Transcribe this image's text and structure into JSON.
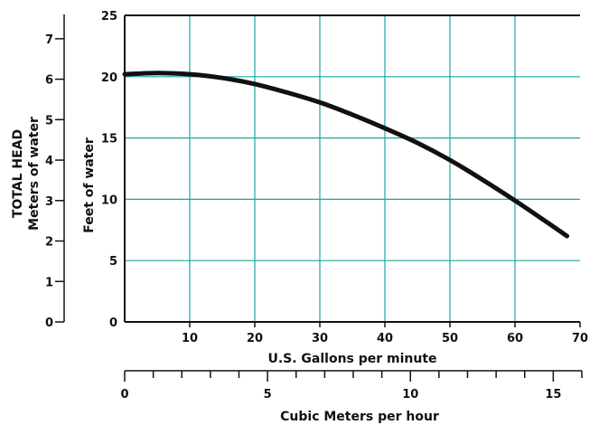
{
  "chart_data": {
    "type": "line",
    "title": "",
    "xlabel": "U.S. Gallons per minute",
    "xlabel_secondary": "Cubic Meters per hour",
    "ylabel": "Feet of water",
    "ylabel_secondary_line1": "TOTAL HEAD",
    "ylabel_secondary_line2": "Meters of  water",
    "xlim": [
      0,
      70
    ],
    "ylim": [
      0,
      25
    ],
    "xlim_secondary": [
      0,
      16
    ],
    "ylim_secondary": [
      0,
      7.6
    ],
    "x_ticks": [
      10,
      20,
      30,
      40,
      50,
      60,
      70
    ],
    "x_tick_labels": [
      "10",
      "20",
      "30",
      "40",
      "50",
      "60",
      "70"
    ],
    "y_ticks": [
      0,
      5,
      10,
      15,
      20,
      25
    ],
    "y_tick_labels": [
      "0",
      "5",
      "10",
      "15",
      "20",
      "25"
    ],
    "x2_ticks": [
      0,
      5,
      10,
      15
    ],
    "x2_tick_labels": [
      "0",
      "5",
      "10",
      "15"
    ],
    "x2_minor_step": 1,
    "y2_ticks": [
      0,
      1,
      2,
      3,
      4,
      5,
      6,
      7
    ],
    "y2_tick_labels": [
      "0",
      "1",
      "2",
      "3",
      "4",
      "5",
      "6",
      "7"
    ],
    "grid": true,
    "grid_color": "#1aa7a1",
    "line_color": "#111111",
    "series": [
      {
        "x": [
          0,
          5,
          10,
          15,
          20,
          25,
          30,
          35,
          40,
          45,
          50,
          55,
          60,
          65,
          68
        ],
        "y": [
          20.2,
          20.3,
          20.2,
          19.9,
          19.4,
          18.7,
          17.9,
          16.9,
          15.8,
          14.6,
          13.2,
          11.6,
          9.9,
          8.1,
          7.0
        ]
      }
    ]
  }
}
